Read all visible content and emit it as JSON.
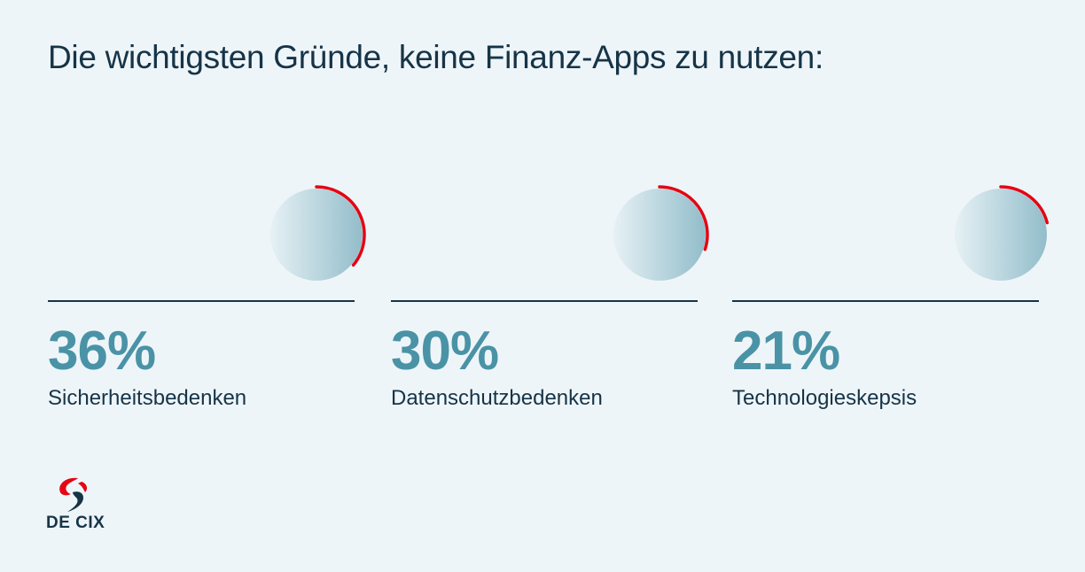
{
  "title": "Die wichtigsten Gründe, keine Finanz-Apps zu nutzen:",
  "chart_data": {
    "type": "pie",
    "title": "Die wichtigsten Gründe, keine Finanz-Apps zu nutzen:",
    "categories": [
      "Sicherheitsbedenken",
      "Datenschutzbedenken",
      "Technologieskepsis"
    ],
    "values": [
      36,
      30,
      21
    ],
    "unit": "%",
    "value_labels": [
      "36%",
      "30%",
      "21%"
    ]
  },
  "colors": {
    "background": "#eef5f9",
    "arc": "#e30613",
    "value_text": "#4a93a6",
    "dark_text": "#163447",
    "circle_light": "#e6f1f5",
    "circle_dark": "#92bdca"
  },
  "logo": {
    "text": "DE CIX",
    "icon": "de-cix-logo-icon"
  }
}
